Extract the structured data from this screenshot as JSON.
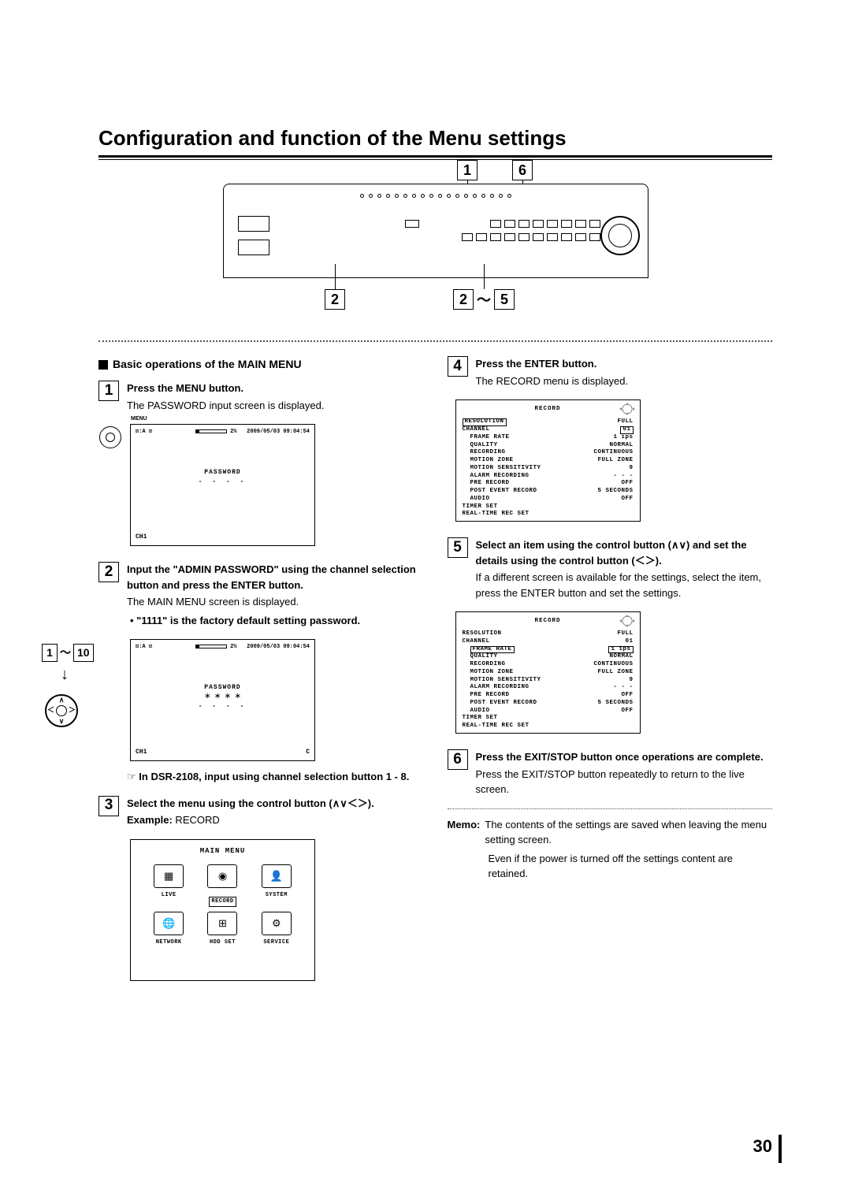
{
  "title": "Configuration and function of the Menu settings",
  "page_number": "30",
  "callouts": {
    "c1": "1",
    "c6": "6",
    "c2": "2",
    "c25a": "2",
    "tilde": "～",
    "c25b": "5"
  },
  "section_head": "Basic operations of the MAIN MENU",
  "step1": {
    "num": "1",
    "title": "Press the MENU button.",
    "desc": "The PASSWORD input screen is displayed.",
    "menu_label": "MENU",
    "topbar_left": "⊡:A ⊡",
    "topbar_pct": "2%",
    "topbar_time": "2009/05/03  09:04:54",
    "password_label": "PASSWORD",
    "dashes": "- - - -",
    "ch": "CH1"
  },
  "step2": {
    "num": "2",
    "title": "Input the \"ADMIN PASSWORD\" using the channel selection button and press the ENTER button.",
    "desc": "The MAIN MENU screen is displayed.",
    "bullet": "\"1111\" is the factory default setting password.",
    "range_a": "1",
    "tilde": "～",
    "range_b": "10",
    "topbar_left": "⊡:A ⊡",
    "topbar_pct": "2%",
    "topbar_time": "2009/05/03  09:04:54",
    "password_label": "PASSWORD",
    "stars": "＊ ＊ ＊ ＊",
    "dashes": "- - - -",
    "ch_l": "CH1",
    "ch_r": "C",
    "note": "In DSR-2108, input using channel selection button 1 - 8."
  },
  "step3": {
    "num": "3",
    "title_a": "Select the menu using the control button (",
    "title_sym": "∧∨＜＞",
    "title_b": ").",
    "example_label": "Example:",
    "example_value": " RECORD",
    "mm_title": "MAIN MENU",
    "items": [
      {
        "label": "LIVE",
        "boxed": false
      },
      {
        "label": "RECORD",
        "boxed": true
      },
      {
        "label": "SYSTEM",
        "boxed": false
      },
      {
        "label": "NETWORK",
        "boxed": false
      },
      {
        "label": "HDD SET",
        "boxed": false
      },
      {
        "label": "SERVICE",
        "boxed": false
      }
    ]
  },
  "step4": {
    "num": "4",
    "title": "Press the ENTER button.",
    "desc": "The RECORD menu is displayed.",
    "rtitle": "RECORD",
    "rows": [
      {
        "k": "RESOLUTION",
        "v": "FULL",
        "indent": false,
        "boxedK": true,
        "boxedV": false
      },
      {
        "k": "CHANNEL",
        "v": "01",
        "indent": false,
        "boxedK": false,
        "boxedV": true
      },
      {
        "k": "FRAME RATE",
        "v": "1 ips",
        "indent": true,
        "boxedK": false,
        "boxedV": false
      },
      {
        "k": "QUALITY",
        "v": "NORMAL",
        "indent": true,
        "boxedK": false,
        "boxedV": false
      },
      {
        "k": "RECORDING",
        "v": "CONTINUOUS",
        "indent": true,
        "boxedK": false,
        "boxedV": false
      },
      {
        "k": "MOTION ZONE",
        "v": "FULL ZONE",
        "indent": true,
        "boxedK": false,
        "boxedV": false
      },
      {
        "k": "MOTION SENSITIVITY",
        "v": "9",
        "indent": true,
        "boxedK": false,
        "boxedV": false
      },
      {
        "k": "ALARM RECORDING",
        "v": "- - -",
        "indent": true,
        "boxedK": false,
        "boxedV": false
      },
      {
        "k": "PRE RECORD",
        "v": "OFF",
        "indent": true,
        "boxedK": false,
        "boxedV": false
      },
      {
        "k": "POST EVENT RECORD",
        "v": "5 SECONDS",
        "indent": true,
        "boxedK": false,
        "boxedV": false
      },
      {
        "k": "AUDIO",
        "v": "OFF",
        "indent": true,
        "boxedK": false,
        "boxedV": false
      },
      {
        "k": "TIMER SET",
        "v": "",
        "indent": false,
        "boxedK": false,
        "boxedV": false
      },
      {
        "k": "REAL-TIME REC SET",
        "v": "",
        "indent": false,
        "boxedK": false,
        "boxedV": false
      }
    ]
  },
  "step5": {
    "num": "5",
    "title_a": "Select an item using the control button (",
    "sym1": "∧∨",
    "title_b": ") and set the details using the control button (",
    "sym2": "＜＞",
    "title_c": ").",
    "desc": "If a different screen is available for the settings, select the item, press the ENTER button and set the settings.",
    "rtitle": "RECORD",
    "rows": [
      {
        "k": "RESOLUTION",
        "v": "FULL",
        "indent": false,
        "boxedK": false,
        "boxedV": false
      },
      {
        "k": "CHANNEL",
        "v": "01",
        "indent": false,
        "boxedK": false,
        "boxedV": false
      },
      {
        "k": "FRAME RATE",
        "v": "1 ips",
        "indent": true,
        "boxedK": true,
        "boxedV": true
      },
      {
        "k": "QUALITY",
        "v": "NORMAL",
        "indent": true,
        "boxedK": false,
        "boxedV": false
      },
      {
        "k": "RECORDING",
        "v": "CONTINUOUS",
        "indent": true,
        "boxedK": false,
        "boxedV": false
      },
      {
        "k": "MOTION ZONE",
        "v": "FULL ZONE",
        "indent": true,
        "boxedK": false,
        "boxedV": false
      },
      {
        "k": "MOTION SENSITIVITY",
        "v": "9",
        "indent": true,
        "boxedK": false,
        "boxedV": false
      },
      {
        "k": "ALARM RECORDING",
        "v": "- - -",
        "indent": true,
        "boxedK": false,
        "boxedV": false
      },
      {
        "k": "PRE RECORD",
        "v": "OFF",
        "indent": true,
        "boxedK": false,
        "boxedV": false
      },
      {
        "k": "POST EVENT RECORD",
        "v": "5 SECONDS",
        "indent": true,
        "boxedK": false,
        "boxedV": false
      },
      {
        "k": "AUDIO",
        "v": "OFF",
        "indent": true,
        "boxedK": false,
        "boxedV": false
      },
      {
        "k": "TIMER SET",
        "v": "",
        "indent": false,
        "boxedK": false,
        "boxedV": false
      },
      {
        "k": "REAL-TIME REC SET",
        "v": "",
        "indent": false,
        "boxedK": false,
        "boxedV": false
      }
    ]
  },
  "step6": {
    "num": "6",
    "title": "Press the EXIT/STOP button once operations are complete.",
    "desc": "Press the EXIT/STOP button repeatedly to return to the live screen."
  },
  "memo": {
    "label": "Memo:",
    "line1": "The contents of the settings are saved when leaving the menu setting screen.",
    "line2": "Even if the power is turned off the settings content are retained."
  }
}
